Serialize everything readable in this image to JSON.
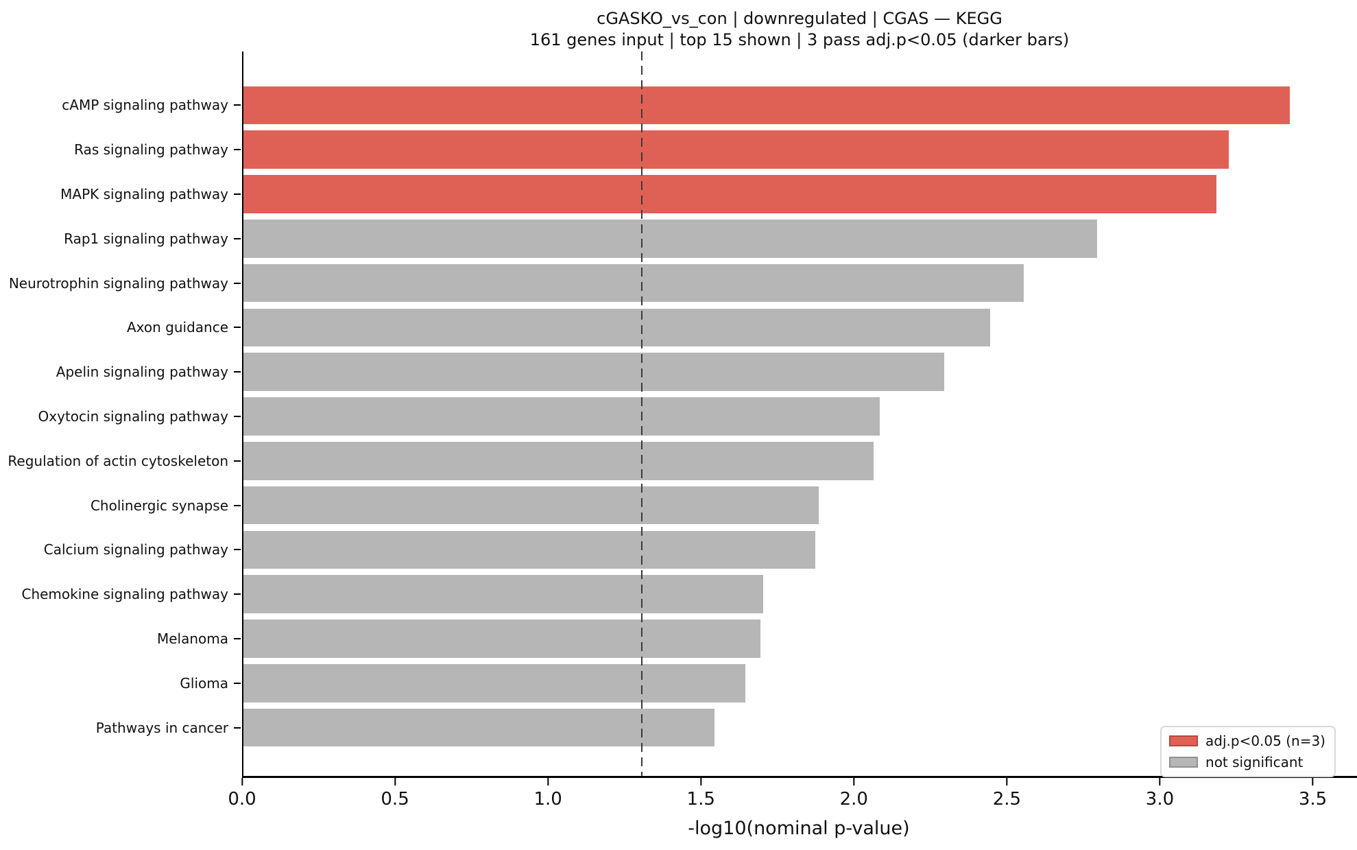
{
  "chart_data": {
    "type": "bar",
    "orientation": "horizontal",
    "title": "cGASKO_vs_con | downregulated | CGAS — KEGG",
    "subtitle": "161 genes input  |  top 15 shown  |  3 pass adj.p<0.05 (darker bars)",
    "xlabel": "-log10(nominal p-value)",
    "xlim": [
      0,
      3.64
    ],
    "x_ticks": [
      0,
      0.5,
      1.0,
      1.5,
      2.0,
      2.5,
      3.0,
      3.5
    ],
    "x_tick_labels": [
      "0.0",
      "0.5",
      "1.0",
      "1.5",
      "2.0",
      "2.5",
      "3.0",
      "3.5"
    ],
    "grid": false,
    "threshold": {
      "value": 1.3,
      "style": "dashed",
      "meaning": "p=0.05 cutoff"
    },
    "categories": [
      "cAMP signaling pathway",
      "Ras signaling pathway",
      "MAPK signaling pathway",
      "Rap1 signaling pathway",
      "Neurotrophin signaling pathway",
      "Axon guidance",
      "Apelin signaling pathway",
      "Oxytocin signaling pathway",
      "Regulation of actin cytoskeleton",
      "Cholinergic synapse",
      "Calcium signaling pathway",
      "Chemokine signaling pathway",
      "Melanoma",
      "Glioma",
      "Pathways in cancer"
    ],
    "values": [
      3.42,
      3.22,
      3.18,
      2.79,
      2.55,
      2.44,
      2.29,
      2.08,
      2.06,
      1.88,
      1.87,
      1.7,
      1.69,
      1.64,
      1.54
    ],
    "significant": [
      true,
      true,
      true,
      false,
      false,
      false,
      false,
      false,
      false,
      false,
      false,
      false,
      false,
      false,
      false
    ],
    "legend": {
      "position": "lower right",
      "entries": [
        {
          "label": "adj.p<0.05 (n=3)",
          "key": "significant"
        },
        {
          "label": "not significant",
          "key": "not_significant"
        }
      ]
    },
    "colors": {
      "significant": "#df6156",
      "significant_edge": "#b8483e",
      "not_significant": "#b6b6b6",
      "not_significant_edge": "#909090",
      "threshold_line": "#3a3a3a",
      "axis": "#000000"
    }
  }
}
